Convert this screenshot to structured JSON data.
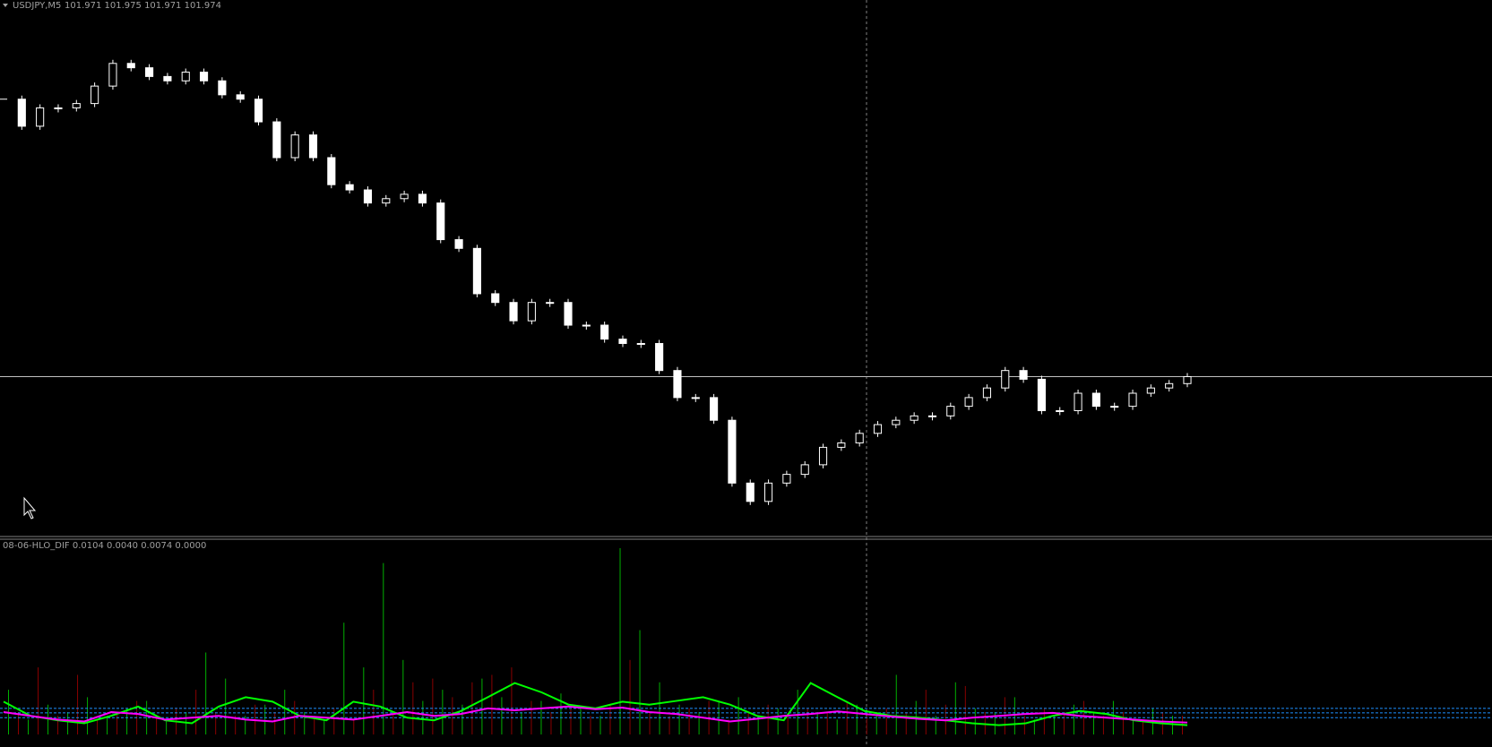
{
  "chart_data": [
    {
      "type": "candles",
      "symbol": "USDJPY,M5",
      "ohlc": "101.971 101.975 101.971 101.974",
      "closes": [
        102.292,
        102.261,
        102.282,
        102.282,
        102.287,
        102.307,
        102.333,
        102.328,
        102.318,
        102.313,
        102.323,
        102.313,
        102.297,
        102.292,
        102.266,
        102.225,
        102.251,
        102.225,
        102.194,
        102.188,
        102.173,
        102.178,
        102.183,
        102.173,
        102.131,
        102.121,
        102.069,
        102.059,
        102.038,
        102.059,
        102.059,
        102.033,
        102.033,
        102.017,
        102.012,
        102.012,
        101.981,
        101.95,
        101.95,
        101.924,
        101.852,
        101.831,
        101.852,
        101.862,
        101.873,
        101.893,
        101.898,
        101.909,
        101.919,
        101.924,
        101.929,
        101.929,
        101.94,
        101.95,
        101.961,
        101.981,
        101.971,
        101.935,
        101.935,
        101.955,
        101.94,
        101.94,
        101.955,
        101.961,
        101.966,
        101.974
      ],
      "ylim": [
        101.8,
        102.38
      ],
      "color": "#ffffff"
    },
    {
      "type": "indicator",
      "title": "08-06-HLO_DIF 0.0104 0.0040 0.0074 0.0000",
      "ylim": [
        0,
        0.05
      ],
      "bars": [
        {
          "color": "#00b000",
          "values": [
            0.012,
            0.004,
            0.008,
            0.006,
            0.01,
            0.005,
            0.007,
            0.009,
            0.004,
            0.006,
            0.022,
            0.015,
            0.005,
            0.008,
            0.012,
            0.006,
            0.004,
            0.03,
            0.018,
            0.046,
            0.02,
            0.009,
            0.012,
            0.008,
            0.015,
            0.01,
            0.006,
            0.009,
            0.011,
            0.007,
            0.005,
            0.05,
            0.028,
            0.014,
            0.008,
            0.006,
            0.009,
            0.01,
            0.005,
            0.007,
            0.012,
            0.006,
            0.004,
            0.008,
            0.006,
            0.016,
            0.009,
            0.005,
            0.014,
            0.007,
            0.006,
            0.01,
            0.004,
            0.005,
            0.008,
            0.006,
            0.009,
            0.004,
            0.007,
            0.005
          ]
        },
        {
          "color": "#8b0000",
          "values": [
            0.006,
            0.018,
            0.005,
            0.016,
            0.004,
            0.006,
            0.009,
            0.005,
            0.007,
            0.012,
            0.006,
            0.005,
            0.008,
            0.006,
            0.009,
            0.005,
            0.007,
            0.004,
            0.012,
            0.006,
            0.014,
            0.015,
            0.01,
            0.014,
            0.016,
            0.018,
            0.009,
            0.006,
            0.007,
            0.005,
            0.008,
            0.02,
            0.006,
            0.005,
            0.007,
            0.009,
            0.004,
            0.006,
            0.008,
            0.005,
            0.007,
            0.006,
            0.009,
            0.005,
            0.007,
            0.006,
            0.012,
            0.008,
            0.013,
            0.006,
            0.01,
            0.005,
            0.007,
            0.006,
            0.009,
            0.005,
            0.006,
            0.004,
            0.006,
            0.005
          ]
        }
      ],
      "series": [
        {
          "color": "#00ff00",
          "values": [
            0.0088,
            0.005,
            0.0038,
            0.003,
            0.005,
            0.0075,
            0.0038,
            0.003,
            0.0075,
            0.01,
            0.0088,
            0.005,
            0.0038,
            0.0088,
            0.0075,
            0.0045,
            0.0038,
            0.0063,
            0.01,
            0.0138,
            0.0113,
            0.008,
            0.007,
            0.0088,
            0.008,
            0.009,
            0.01,
            0.008,
            0.005,
            0.0038,
            0.0138,
            0.01,
            0.0063,
            0.005,
            0.0045,
            0.0038,
            0.003,
            0.0025,
            0.003,
            0.005,
            0.0063,
            0.0055,
            0.0038,
            0.003,
            0.0025
          ]
        },
        {
          "color": "#ff00ff",
          "values": [
            0.006,
            0.005,
            0.004,
            0.0035,
            0.006,
            0.0055,
            0.004,
            0.0045,
            0.005,
            0.004,
            0.0035,
            0.005,
            0.0045,
            0.004,
            0.005,
            0.006,
            0.005,
            0.0055,
            0.007,
            0.0065,
            0.007,
            0.0075,
            0.0068,
            0.0072,
            0.006,
            0.0055,
            0.0045,
            0.0035,
            0.0042,
            0.005,
            0.0055,
            0.0062,
            0.0055,
            0.0048,
            0.0042,
            0.0038,
            0.0045,
            0.005,
            0.0055,
            0.0058,
            0.005,
            0.0045,
            0.004,
            0.0035,
            0.0032
          ]
        }
      ],
      "levels": [
        0.007,
        0.0058,
        0.0045
      ],
      "level_color": "#1e90ff"
    }
  ]
}
